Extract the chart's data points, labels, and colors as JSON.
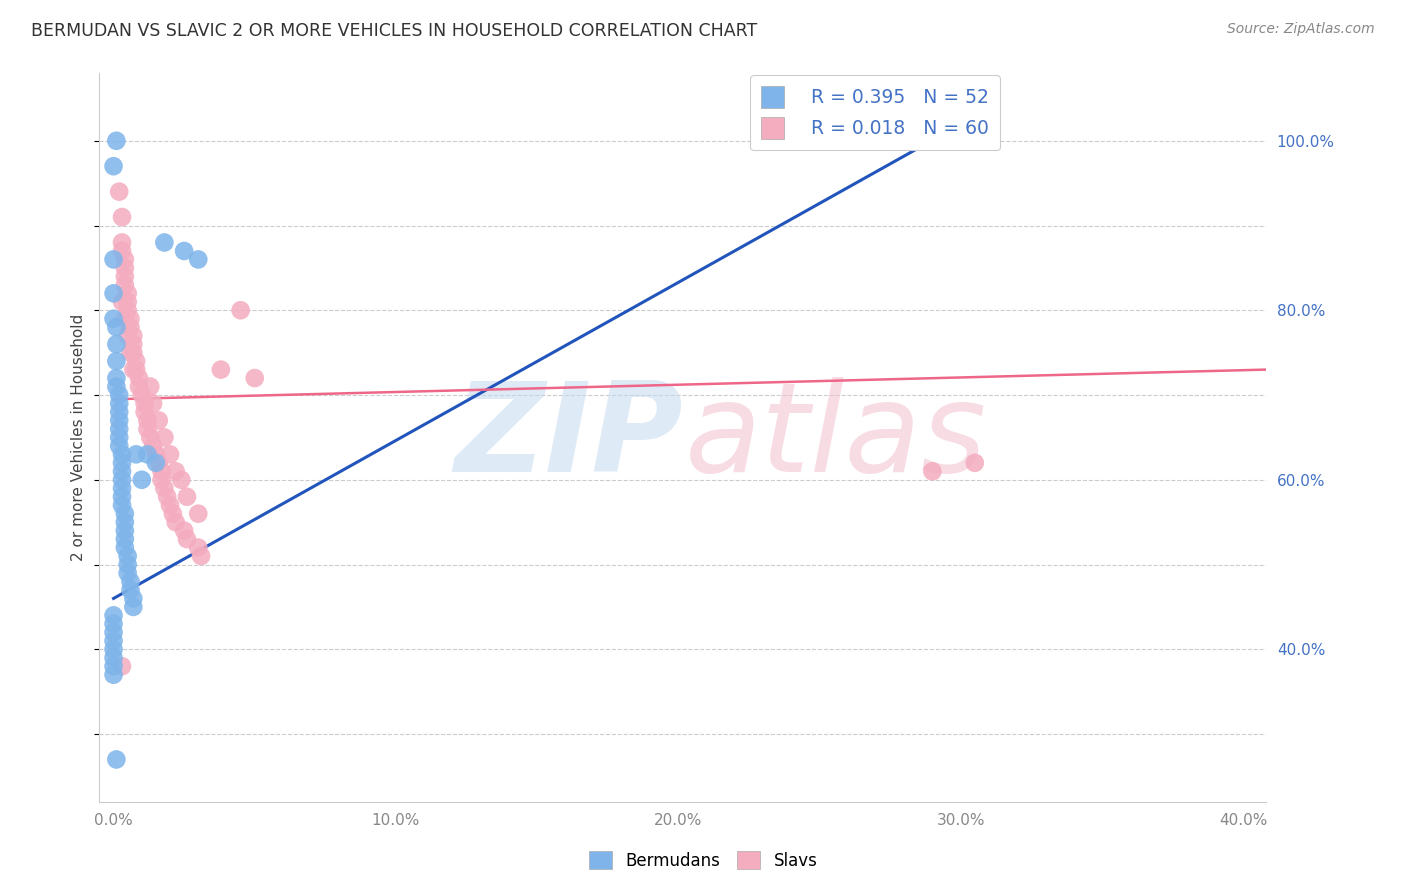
{
  "title": "BERMUDAN VS SLAVIC 2 OR MORE VEHICLES IN HOUSEHOLD CORRELATION CHART",
  "source": "Source: ZipAtlas.com",
  "ylabel": "2 or more Vehicles in Household",
  "x_tick_labels": [
    "0.0%",
    "",
    "10.0%",
    "",
    "20.0%",
    "",
    "30.0%",
    "",
    "40.0%"
  ],
  "x_tick_vals": [
    0.0,
    0.05,
    0.1,
    0.15,
    0.2,
    0.25,
    0.3,
    0.35,
    0.4
  ],
  "x_tick_labels_show": [
    "0.0%",
    "10.0%",
    "20.0%",
    "30.0%",
    "40.0%"
  ],
  "x_tick_vals_show": [
    0.0,
    0.1,
    0.2,
    0.3,
    0.4
  ],
  "y_tick_labels_right": [
    "100.0%",
    "80.0%",
    "60.0%",
    "40.0%"
  ],
  "y_tick_vals": [
    1.0,
    0.8,
    0.6,
    0.4
  ],
  "xlim": [
    -0.005,
    0.408
  ],
  "ylim": [
    0.22,
    1.08
  ],
  "legend_color1": "#7EB4EA",
  "legend_color2": "#F4ACBF",
  "line_color1": "#2255BB",
  "line_color2": "#EE6688",
  "dot_color1": "#7EB4EA",
  "dot_color2": "#F4ACBF",
  "watermark_color_zip": "#C5D9F1",
  "watermark_color_atlas": "#F2C0CE",
  "background_color": "#FFFFFF",
  "grid_color": "#CCCCCC",
  "label_color_right": "#4472C4",
  "title_color": "#333333",
  "source_color": "#888888",
  "ylabel_color": "#444444",
  "xtick_color": "#888888",
  "bermudans_x": [
    0.001,
    0.0,
    0.0,
    0.0,
    0.0,
    0.001,
    0.001,
    0.001,
    0.001,
    0.001,
    0.002,
    0.002,
    0.002,
    0.002,
    0.002,
    0.002,
    0.002,
    0.003,
    0.003,
    0.003,
    0.003,
    0.003,
    0.003,
    0.003,
    0.004,
    0.004,
    0.004,
    0.004,
    0.004,
    0.005,
    0.005,
    0.005,
    0.006,
    0.006,
    0.007,
    0.007,
    0.008,
    0.01,
    0.012,
    0.015,
    0.018,
    0.025,
    0.03,
    0.0,
    0.0,
    0.0,
    0.0,
    0.0,
    0.0,
    0.0,
    0.0,
    0.001
  ],
  "bermudans_y": [
    1.0,
    0.97,
    0.86,
    0.82,
    0.79,
    0.78,
    0.76,
    0.74,
    0.72,
    0.71,
    0.7,
    0.69,
    0.68,
    0.67,
    0.66,
    0.65,
    0.64,
    0.63,
    0.62,
    0.61,
    0.6,
    0.59,
    0.58,
    0.57,
    0.56,
    0.55,
    0.54,
    0.53,
    0.52,
    0.51,
    0.5,
    0.49,
    0.48,
    0.47,
    0.46,
    0.45,
    0.63,
    0.6,
    0.63,
    0.62,
    0.88,
    0.87,
    0.86,
    0.44,
    0.43,
    0.42,
    0.41,
    0.4,
    0.39,
    0.38,
    0.37,
    0.27
  ],
  "slavs_x": [
    0.002,
    0.003,
    0.003,
    0.003,
    0.004,
    0.004,
    0.004,
    0.004,
    0.005,
    0.005,
    0.005,
    0.006,
    0.006,
    0.007,
    0.007,
    0.007,
    0.008,
    0.008,
    0.009,
    0.009,
    0.01,
    0.011,
    0.011,
    0.012,
    0.012,
    0.013,
    0.014,
    0.015,
    0.016,
    0.017,
    0.017,
    0.018,
    0.019,
    0.02,
    0.021,
    0.022,
    0.025,
    0.026,
    0.03,
    0.031,
    0.003,
    0.004,
    0.005,
    0.006,
    0.007,
    0.013,
    0.014,
    0.016,
    0.018,
    0.02,
    0.022,
    0.024,
    0.026,
    0.03,
    0.003,
    0.29,
    0.305,
    0.038,
    0.045,
    0.05
  ],
  "slavs_y": [
    0.94,
    0.91,
    0.88,
    0.87,
    0.86,
    0.85,
    0.84,
    0.83,
    0.82,
    0.81,
    0.8,
    0.79,
    0.78,
    0.77,
    0.76,
    0.75,
    0.74,
    0.73,
    0.72,
    0.71,
    0.7,
    0.69,
    0.68,
    0.67,
    0.66,
    0.65,
    0.64,
    0.63,
    0.62,
    0.61,
    0.6,
    0.59,
    0.58,
    0.57,
    0.56,
    0.55,
    0.54,
    0.53,
    0.52,
    0.51,
    0.81,
    0.79,
    0.77,
    0.75,
    0.73,
    0.71,
    0.69,
    0.67,
    0.65,
    0.63,
    0.61,
    0.6,
    0.58,
    0.56,
    0.38,
    0.61,
    0.62,
    0.73,
    0.8,
    0.72
  ],
  "bermudan_line_x": [
    0.0,
    0.295
  ],
  "bermudan_line_y": [
    0.46,
    1.01
  ],
  "slavs_line_x": [
    0.0,
    0.408
  ],
  "slavs_line_y": [
    0.695,
    0.73
  ]
}
